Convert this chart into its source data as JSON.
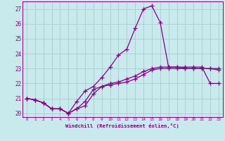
{
  "xlabel": "Windchill (Refroidissement éolien,°C)",
  "x": [
    0,
    1,
    2,
    3,
    4,
    5,
    6,
    7,
    8,
    9,
    10,
    11,
    12,
    13,
    14,
    15,
    16,
    17,
    18,
    19,
    20,
    21,
    22,
    23
  ],
  "line1": [
    21.0,
    20.9,
    20.7,
    20.3,
    20.3,
    20.0,
    20.3,
    20.5,
    21.3,
    21.8,
    22.0,
    22.1,
    22.3,
    22.5,
    22.8,
    23.0,
    23.1,
    23.1,
    23.1,
    23.1,
    23.1,
    23.1,
    22.0,
    22.0
  ],
  "line2": [
    21.0,
    20.9,
    20.7,
    20.3,
    20.3,
    20.0,
    20.8,
    21.5,
    21.8,
    22.4,
    23.1,
    23.9,
    24.3,
    25.7,
    27.0,
    27.2,
    26.1,
    23.1,
    23.1,
    23.0,
    23.0,
    23.0,
    23.0,
    23.0
  ],
  "line3": [
    21.0,
    20.9,
    20.7,
    20.3,
    20.3,
    20.0,
    20.3,
    20.8,
    21.6,
    21.8,
    21.9,
    22.0,
    22.1,
    22.3,
    22.6,
    22.9,
    23.0,
    23.0,
    23.0,
    23.0,
    23.0,
    23.0,
    23.0,
    22.9
  ],
  "line_color": "#880088",
  "bg_color": "#c8eaec",
  "grid_color": "#aaccce",
  "ylim": [
    19.75,
    27.5
  ],
  "xlim": [
    -0.5,
    23.5
  ],
  "yticks": [
    20,
    21,
    22,
    23,
    24,
    25,
    26,
    27
  ],
  "xticks": [
    0,
    1,
    2,
    3,
    4,
    5,
    6,
    7,
    8,
    9,
    10,
    11,
    12,
    13,
    14,
    15,
    16,
    17,
    18,
    19,
    20,
    21,
    22,
    23
  ]
}
